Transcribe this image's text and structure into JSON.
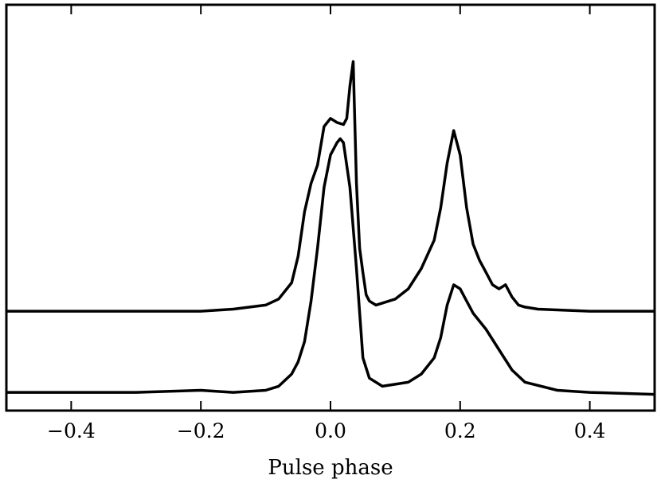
{
  "chart_data": {
    "type": "line",
    "title": "",
    "xlabel": "Pulse phase",
    "ylabel": "",
    "xlim": [
      -0.5,
      0.5
    ],
    "ylim": [
      0,
      1
    ],
    "x_ticks": [
      -0.4,
      -0.2,
      0.0,
      0.2,
      0.4
    ],
    "x_tick_labels": [
      "−0.4",
      "−0.2",
      "0.0",
      "0.2",
      "0.4"
    ],
    "y_ticks_visible": false,
    "grid": false,
    "legend": "none",
    "line_color": "#000000",
    "series": [
      {
        "x": [
          -0.5,
          -0.4,
          -0.3,
          -0.2,
          -0.15,
          -0.1,
          -0.08,
          -0.06,
          -0.05,
          -0.04,
          -0.03,
          -0.02,
          -0.01,
          0.0,
          0.01,
          0.02,
          0.025,
          0.03,
          0.035,
          0.04,
          0.045,
          0.05,
          0.055,
          0.06,
          0.07,
          0.08,
          0.1,
          0.12,
          0.14,
          0.16,
          0.17,
          0.18,
          0.19,
          0.2,
          0.21,
          0.22,
          0.23,
          0.24,
          0.25,
          0.26,
          0.27,
          0.28,
          0.29,
          0.3,
          0.32,
          0.35,
          0.4,
          0.5
        ],
        "values": [
          0.245,
          0.245,
          0.245,
          0.245,
          0.25,
          0.26,
          0.275,
          0.315,
          0.38,
          0.49,
          0.56,
          0.605,
          0.7,
          0.72,
          0.71,
          0.705,
          0.72,
          0.8,
          0.86,
          0.56,
          0.4,
          0.34,
          0.285,
          0.27,
          0.26,
          0.265,
          0.275,
          0.3,
          0.35,
          0.42,
          0.5,
          0.61,
          0.69,
          0.63,
          0.5,
          0.41,
          0.37,
          0.34,
          0.31,
          0.3,
          0.31,
          0.28,
          0.26,
          0.255,
          0.25,
          0.248,
          0.245,
          0.245
        ]
      },
      {
        "x": [
          -0.5,
          -0.4,
          -0.3,
          -0.2,
          -0.15,
          -0.1,
          -0.08,
          -0.06,
          -0.05,
          -0.04,
          -0.03,
          -0.02,
          -0.01,
          0.0,
          0.01,
          0.015,
          0.02,
          0.03,
          0.04,
          0.05,
          0.06,
          0.08,
          0.1,
          0.12,
          0.14,
          0.16,
          0.17,
          0.18,
          0.19,
          0.2,
          0.21,
          0.22,
          0.24,
          0.26,
          0.28,
          0.3,
          0.35,
          0.4,
          0.5
        ],
        "values": [
          0.045,
          0.045,
          0.045,
          0.05,
          0.045,
          0.05,
          0.06,
          0.09,
          0.12,
          0.17,
          0.27,
          0.4,
          0.55,
          0.63,
          0.66,
          0.67,
          0.66,
          0.55,
          0.35,
          0.13,
          0.08,
          0.06,
          0.065,
          0.07,
          0.09,
          0.13,
          0.18,
          0.26,
          0.31,
          0.3,
          0.27,
          0.24,
          0.2,
          0.15,
          0.1,
          0.07,
          0.05,
          0.045,
          0.04
        ]
      }
    ]
  }
}
